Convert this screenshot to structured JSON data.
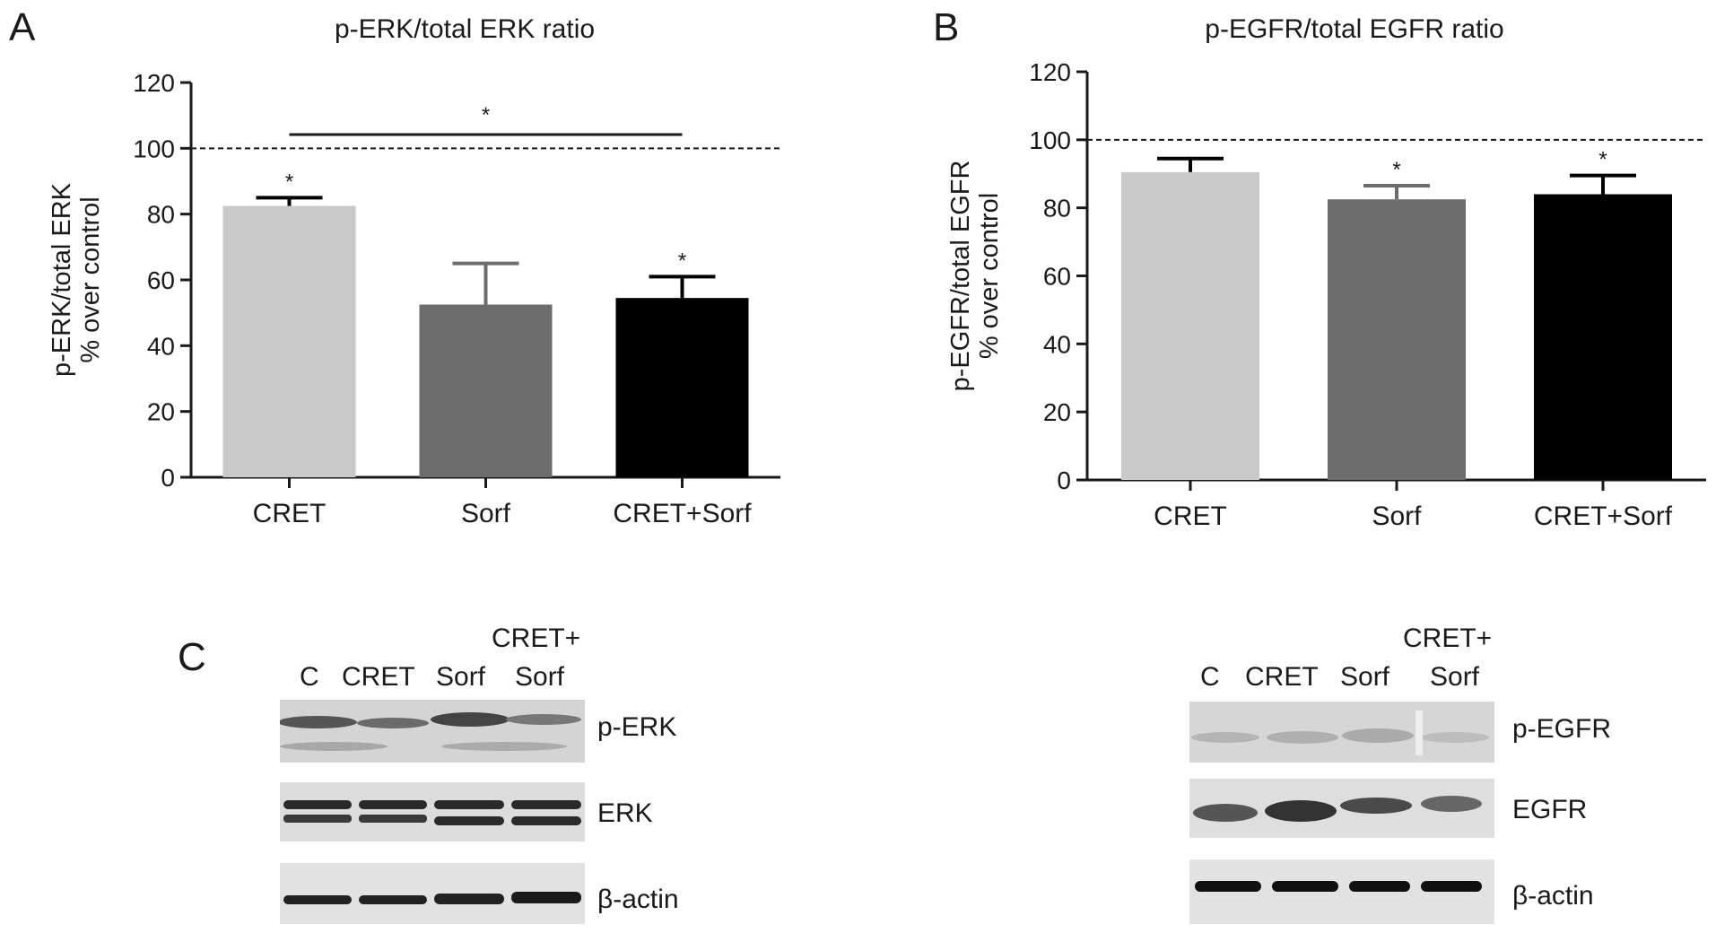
{
  "panels": {
    "a": "A",
    "b": "B",
    "c": "C"
  },
  "chart_data": [
    {
      "type": "bar",
      "title": "p-ERK/total ERK ratio",
      "ylabel_line1": "p-ERK/total ERK",
      "ylabel_line2": "% over control",
      "xlabel": "",
      "categories": [
        "CRET",
        "Sorf",
        "CRET+Sorf"
      ],
      "values": [
        82.5,
        52.5,
        54.5
      ],
      "errors": [
        2.5,
        12.5,
        6.5
      ],
      "colors": [
        "#c9c9c9",
        "#6c6c6c",
        "#000000"
      ],
      "significance": [
        "*",
        "",
        "*"
      ],
      "comparison": {
        "from": "CRET",
        "to": "CRET+Sorf",
        "label": "*"
      },
      "reference_line": 100,
      "ylim": [
        0,
        120
      ],
      "yticks": [
        "0",
        "20",
        "40",
        "60",
        "80",
        "100",
        "120"
      ],
      "grid": false
    },
    {
      "type": "bar",
      "title": "p-EGFR/total EGFR ratio",
      "ylabel_line1": "p-EGFR/total EGFR",
      "ylabel_line2": "% over control",
      "xlabel": "",
      "categories": [
        "CRET",
        "Sorf",
        "CRET+Sorf"
      ],
      "values": [
        90.5,
        82.5,
        84
      ],
      "errors": [
        4,
        4,
        5.5
      ],
      "colors": [
        "#c9c9c9",
        "#6c6c6c",
        "#000000"
      ],
      "significance": [
        "",
        "*",
        "*"
      ],
      "reference_line": 100,
      "ylim": [
        0,
        120
      ],
      "yticks": [
        "0",
        "20",
        "40",
        "60",
        "80",
        "100",
        "120"
      ],
      "grid": false
    }
  ],
  "blots": {
    "erk": {
      "lanes": [
        "C",
        "CRET",
        "Sorf",
        "CRET+",
        "Sorf"
      ],
      "rows": [
        "p-ERK",
        "ERK",
        "β-actin"
      ]
    },
    "egfr": {
      "lanes": [
        "C",
        "CRET",
        "Sorf",
        "CRET+",
        "Sorf"
      ],
      "rows": [
        "p-EGFR",
        "EGFR",
        "β-actin"
      ]
    }
  }
}
